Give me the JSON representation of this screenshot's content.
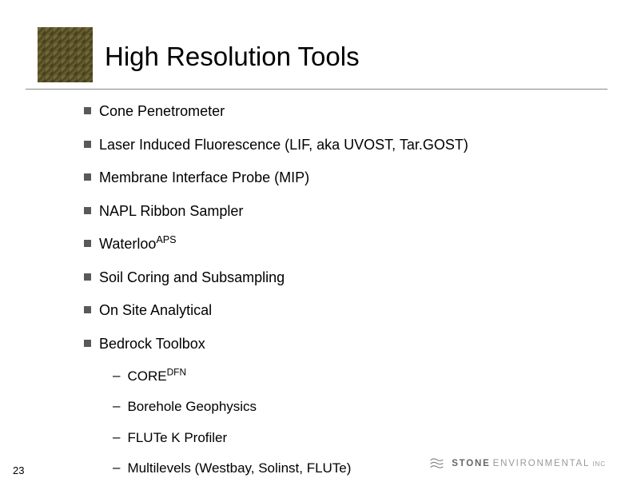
{
  "title": "High Resolution Tools",
  "bullets": [
    {
      "text": "Cone Penetrometer"
    },
    {
      "text": "Laser Induced Fluorescence (LIF, aka UVOST, Tar.GOST)"
    },
    {
      "text": "Membrane Interface Probe (MIP)"
    },
    {
      "text": "NAPL Ribbon Sampler"
    },
    {
      "text_html": "Waterloo<sup>APS</sup>"
    },
    {
      "text": "Soil Coring and Subsampling"
    },
    {
      "text": "On Site Analytical"
    },
    {
      "text": "Bedrock Toolbox",
      "sub": [
        {
          "text_html": "CORE<sup>DFN</sup>"
        },
        {
          "text": "Borehole Geophysics"
        },
        {
          "text": "FLUTe K Profiler"
        },
        {
          "text": "Multilevels (Westbay, Solinst, FLUTe)"
        }
      ]
    }
  ],
  "page_number": "23",
  "brand": {
    "strong": "STONE",
    "light": "ENVIRONMENTAL",
    "inc": "INC",
    "icon_color": "#888888"
  },
  "colors": {
    "bullet_square": "#595959",
    "rule": "#888888",
    "text": "#000000",
    "background": "#ffffff"
  }
}
